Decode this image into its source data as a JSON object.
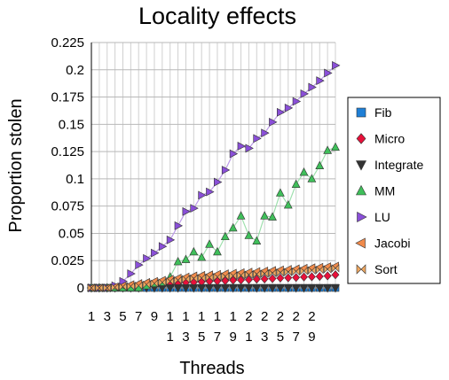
{
  "chart_data": {
    "type": "line",
    "title": "Locality effects",
    "xlabel": "Threads",
    "ylabel": "Proportion stolen",
    "ylim": [
      0,
      0.225
    ],
    "yticks": [
      0,
      0.025,
      0.05,
      0.075,
      0.1,
      0.125,
      0.15,
      0.175,
      0.2,
      0.225
    ],
    "ytick_labels": [
      "0",
      "0.025",
      "0.05",
      "0.075",
      "0.1",
      "0.125",
      "0.15",
      "0.175",
      "0.2",
      "0.225"
    ],
    "x": [
      1,
      2,
      3,
      4,
      5,
      6,
      7,
      8,
      9,
      10,
      11,
      12,
      13,
      14,
      15,
      16,
      17,
      18,
      19,
      20,
      21,
      22,
      23,
      24,
      25,
      26,
      27,
      28,
      29,
      30,
      31,
      32
    ],
    "xtick_labels": [
      {
        "x": 1,
        "lines": [
          "1"
        ]
      },
      {
        "x": 3,
        "lines": [
          "3"
        ]
      },
      {
        "x": 5,
        "lines": [
          "5"
        ]
      },
      {
        "x": 7,
        "lines": [
          "7"
        ]
      },
      {
        "x": 9,
        "lines": [
          "9"
        ]
      },
      {
        "x": 11,
        "lines": [
          "1",
          "1"
        ]
      },
      {
        "x": 13,
        "lines": [
          "1",
          "3"
        ]
      },
      {
        "x": 15,
        "lines": [
          "1",
          "5"
        ]
      },
      {
        "x": 17,
        "lines": [
          "1",
          "7"
        ]
      },
      {
        "x": 19,
        "lines": [
          "1",
          "9"
        ]
      },
      {
        "x": 21,
        "lines": [
          "2",
          "1"
        ]
      },
      {
        "x": 23,
        "lines": [
          "2",
          "3"
        ]
      },
      {
        "x": 25,
        "lines": [
          "2",
          "5"
        ]
      },
      {
        "x": 27,
        "lines": [
          "2",
          "7"
        ]
      },
      {
        "x": 29,
        "lines": [
          "2",
          "9"
        ]
      }
    ],
    "grid": true,
    "legend_position": "right",
    "series": [
      {
        "name": "Fib",
        "marker": "square",
        "color": "#1e7fd6",
        "line_color": "#7db9ea",
        "values": [
          0,
          0,
          0,
          0,
          0,
          0,
          0,
          0,
          0,
          0,
          0,
          0,
          0,
          0,
          0,
          0,
          0,
          0,
          0,
          0,
          0,
          0,
          0,
          0,
          0,
          0,
          0,
          0,
          0,
          0,
          0,
          0
        ]
      },
      {
        "name": "Micro",
        "marker": "diamond",
        "color": "#e8103a",
        "line_color": "#f28aa0",
        "values": [
          0,
          0,
          0,
          0.0005,
          0.001,
          0.0015,
          0.002,
          0.0025,
          0.003,
          0.0035,
          0.004,
          0.0045,
          0.005,
          0.0052,
          0.0055,
          0.006,
          0.0062,
          0.0065,
          0.007,
          0.0072,
          0.0075,
          0.008,
          0.0082,
          0.0085,
          0.009,
          0.0092,
          0.0095,
          0.01,
          0.0102,
          0.0105,
          0.011,
          0.012
        ]
      },
      {
        "name": "Integrate",
        "marker": "triangle-down",
        "color": "#333333",
        "line_color": "#999999",
        "values": [
          0,
          0,
          0,
          0,
          0,
          0,
          0,
          0,
          0,
          0,
          0,
          0,
          0,
          0,
          0,
          0,
          0,
          0,
          0,
          0,
          0,
          0,
          0,
          0,
          0,
          0,
          0,
          0,
          0,
          0,
          0,
          0
        ]
      },
      {
        "name": "MM",
        "marker": "triangle-up",
        "color": "#3fbf5a",
        "line_color": "#9fe0ae",
        "values": [
          0,
          0,
          0,
          0,
          0,
          0,
          0,
          0.002,
          0.004,
          0.005,
          0.01,
          0.024,
          0.026,
          0.033,
          0.028,
          0.04,
          0.033,
          0.047,
          0.055,
          0.066,
          0.048,
          0.043,
          0.066,
          0.065,
          0.087,
          0.076,
          0.095,
          0.106,
          0.1,
          0.112,
          0.126,
          0.129
        ]
      },
      {
        "name": "LU",
        "marker": "triangle-right",
        "color": "#8a4fd8",
        "line_color": "#bd9ce8",
        "values": [
          0,
          0,
          0,
          0.002,
          0.006,
          0.013,
          0.021,
          0.027,
          0.032,
          0.038,
          0.044,
          0.057,
          0.07,
          0.073,
          0.085,
          0.088,
          0.097,
          0.108,
          0.123,
          0.13,
          0.128,
          0.137,
          0.142,
          0.152,
          0.161,
          0.165,
          0.171,
          0.178,
          0.184,
          0.19,
          0.197,
          0.204
        ]
      },
      {
        "name": "Jacobi",
        "marker": "triangle-left",
        "color": "#f08a4b",
        "line_color": "#f6bd97",
        "values": [
          0,
          0,
          0,
          0.001,
          0.002,
          0.003,
          0.004,
          0.005,
          0.006,
          0.007,
          0.008,
          0.009,
          0.01,
          0.011,
          0.0115,
          0.012,
          0.0125,
          0.013,
          0.0135,
          0.014,
          0.0145,
          0.015,
          0.0155,
          0.016,
          0.0165,
          0.017,
          0.0175,
          0.018,
          0.0185,
          0.019,
          0.0195,
          0.02
        ]
      },
      {
        "name": "Sort",
        "marker": "bowtie",
        "color": "#f0a860",
        "line_color": "#f6cfa3",
        "values": [
          0,
          0,
          0,
          0.0005,
          0.001,
          0.0015,
          0.002,
          0.003,
          0.004,
          0.005,
          0.006,
          0.007,
          0.008,
          0.0085,
          0.009,
          0.0095,
          0.01,
          0.0105,
          0.011,
          0.0115,
          0.012,
          0.0125,
          0.013,
          0.0135,
          0.014,
          0.0145,
          0.015,
          0.0155,
          0.016,
          0.0165,
          0.017,
          0.018
        ]
      }
    ]
  }
}
